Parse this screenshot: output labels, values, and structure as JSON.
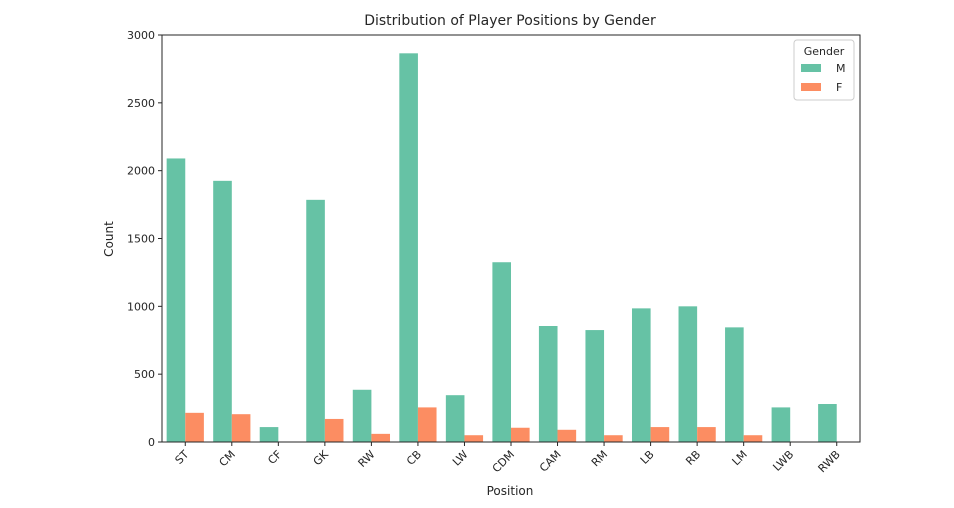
{
  "chart_data": {
    "type": "bar",
    "title": "Distribution of Player Positions by Gender",
    "xlabel": "Position",
    "ylabel": "Count",
    "ylim": [
      0,
      3000
    ],
    "yticks": [
      0,
      500,
      1000,
      1500,
      2000,
      2500,
      3000
    ],
    "grid": false,
    "legend": {
      "title": "Gender",
      "placement": "top-right"
    },
    "categories": [
      "ST",
      "CM",
      "CF",
      "GK",
      "RW",
      "CB",
      "LW",
      "CDM",
      "CAM",
      "RM",
      "LB",
      "RB",
      "LM",
      "LWB",
      "RWB"
    ],
    "series": [
      {
        "name": "M",
        "color": "#66c2a5",
        "values": [
          2090,
          1925,
          110,
          1785,
          385,
          2865,
          345,
          1325,
          855,
          825,
          985,
          1000,
          845,
          255,
          280
        ]
      },
      {
        "name": "F",
        "color": "#fc8d62",
        "values": [
          215,
          205,
          0,
          170,
          60,
          255,
          50,
          105,
          90,
          50,
          110,
          110,
          50,
          0,
          0
        ]
      }
    ]
  }
}
